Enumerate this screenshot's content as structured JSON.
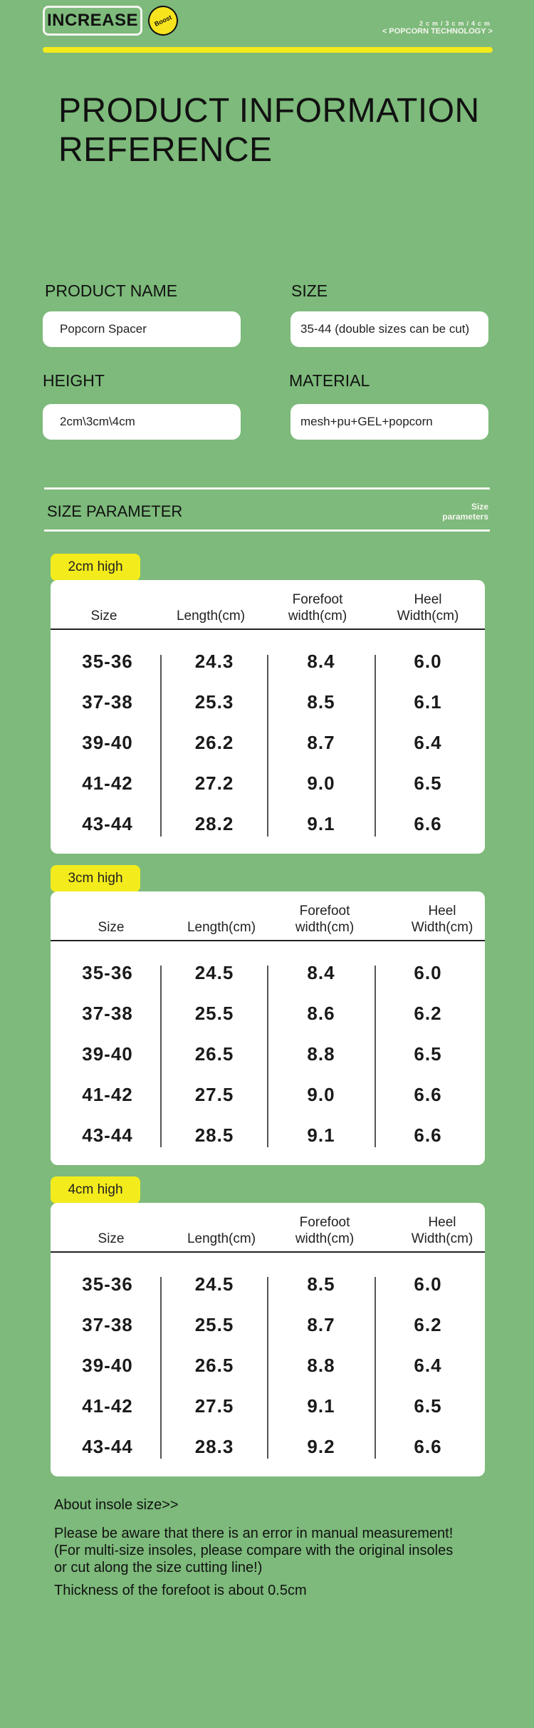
{
  "header": {
    "logo": "INCREASE",
    "badge": "Boost",
    "sizes_line": "2cm/3cm/4cm",
    "tech": "< POPCORN TECHNOLOGY >"
  },
  "title_lines": [
    "PRODUCT INFORMATION",
    "REFERENCE"
  ],
  "fields": {
    "product_name_label": "PRODUCT NAME",
    "product_name_value": "Popcorn Spacer",
    "size_label": "SIZE",
    "size_value": "35-44  (double sizes can be cut)",
    "height_label": "HEIGHT",
    "height_value": "2cm\\3cm\\4cm",
    "material_label": "MATERIAL",
    "material_value": "mesh+pu+GEL+popcorn"
  },
  "size_section": {
    "title": "SIZE PARAMETER",
    "subtitle_1": "Size",
    "subtitle_2": "parameters"
  },
  "columns": {
    "size": "Size",
    "length": "Length(cm)",
    "forefoot_1": "Forefoot",
    "forefoot_2": "width(cm)",
    "heel_1": "Heel",
    "heel_2": "Width(cm)"
  },
  "tables": [
    {
      "tag": "2cm high",
      "rows": [
        {
          "size": "35-36",
          "length": "24.3",
          "forefoot": "8.4",
          "heel": "6.0"
        },
        {
          "size": "37-38",
          "length": "25.3",
          "forefoot": "8.5",
          "heel": "6.1"
        },
        {
          "size": "39-40",
          "length": "26.2",
          "forefoot": "8.7",
          "heel": "6.4"
        },
        {
          "size": "41-42",
          "length": "27.2",
          "forefoot": "9.0",
          "heel": "6.5"
        },
        {
          "size": "43-44",
          "length": "28.2",
          "forefoot": "9.1",
          "heel": "6.6"
        }
      ]
    },
    {
      "tag": "3cm high",
      "rows": [
        {
          "size": "35-36",
          "length": "24.5",
          "forefoot": "8.4",
          "heel": "6.0"
        },
        {
          "size": "37-38",
          "length": "25.5",
          "forefoot": "8.6",
          "heel": "6.2"
        },
        {
          "size": "39-40",
          "length": "26.5",
          "forefoot": "8.8",
          "heel": "6.5"
        },
        {
          "size": "41-42",
          "length": "27.5",
          "forefoot": "9.0",
          "heel": "6.6"
        },
        {
          "size": "43-44",
          "length": "28.5",
          "forefoot": "9.1",
          "heel": "6.6"
        }
      ]
    },
    {
      "tag": "4cm high",
      "rows": [
        {
          "size": "35-36",
          "length": "24.5",
          "forefoot": "8.5",
          "heel": "6.0"
        },
        {
          "size": "37-38",
          "length": "25.5",
          "forefoot": "8.7",
          "heel": "6.2"
        },
        {
          "size": "39-40",
          "length": "26.5",
          "forefoot": "8.8",
          "heel": "6.4"
        },
        {
          "size": "41-42",
          "length": "27.5",
          "forefoot": "9.1",
          "heel": "6.5"
        },
        {
          "size": "43-44",
          "length": "28.3",
          "forefoot": "9.2",
          "heel": "6.6"
        }
      ]
    }
  ],
  "notes": {
    "heading": "About insole size>>",
    "line_1": "Please be aware that there is an error in manual measurement!",
    "line_2": "(For multi-size insoles, please compare with the original insoles",
    "line_3": "or cut along the size cutting line!)",
    "line_4": "Thickness of the forefoot is about 0.5cm"
  },
  "colors": {
    "background": "#7dba7b",
    "accent_yellow": "#f3eb1c",
    "card": "#ffffff"
  }
}
